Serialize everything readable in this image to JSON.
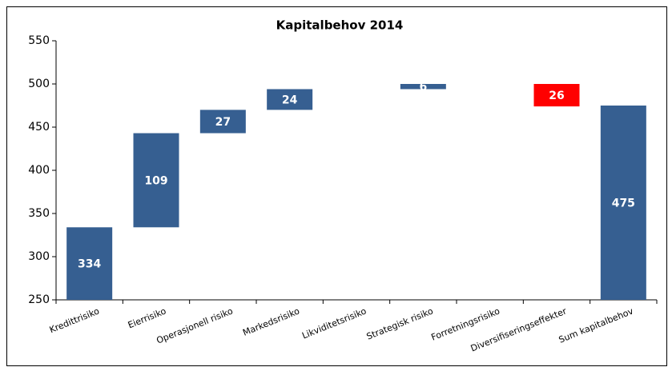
{
  "chart_data": {
    "type": "waterfall",
    "title": "Kapitalbehov 2014",
    "categories": [
      "Kredittrisiko",
      "Eierrisiko",
      "Operasjonell risiko",
      "Markedsrisiko",
      "Likviditetsrisiko",
      "Strategisk risiko",
      "Forretningsrisiko",
      "Diversifiseringseffekter",
      "Sum kapitalbehov"
    ],
    "values": [
      334,
      109,
      27,
      24,
      0,
      6,
      0,
      -26,
      475
    ],
    "value_labels": [
      "334",
      "109",
      "27",
      "24",
      null,
      "6",
      null,
      "26",
      "475"
    ],
    "color": "#365f91",
    "negative_color": "#ff0000",
    "ylim": [
      250,
      550
    ],
    "yticks": [
      250,
      300,
      350,
      400,
      450,
      500,
      550
    ],
    "grid": false
  }
}
